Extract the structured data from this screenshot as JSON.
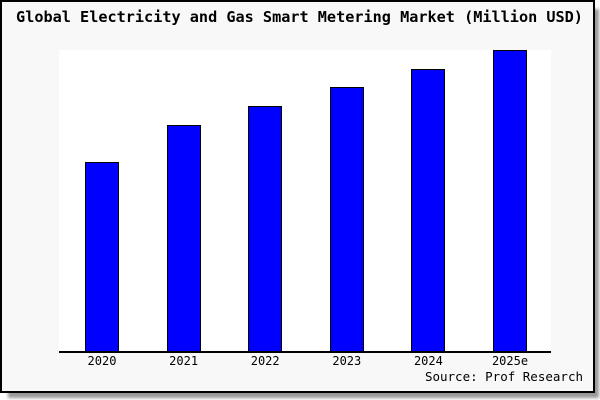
{
  "chart_data": {
    "type": "bar",
    "title": "Global Electricity and Gas Smart Metering Market (Million USD)",
    "categories": [
      "2020",
      "2021",
      "2022",
      "2023",
      "2024",
      "2025e"
    ],
    "values_relative_to_max_pct": [
      62.8,
      75.1,
      81.4,
      87.7,
      93.7,
      100
    ],
    "value_axis_labels_shown": false,
    "ylim_pct": [
      0,
      100
    ],
    "xlabel": "",
    "ylabel": "",
    "grid": false,
    "legend": false
  },
  "source": {
    "text": "Source: Prof Research"
  },
  "colors": {
    "bar_fill": "#0000ff",
    "bar_border": "#000000",
    "plot_bg": "#ffffff",
    "figure_bg": "#f8f8f8",
    "axis_line": "#000000",
    "frame_border": "#000000",
    "shadow": "#999999"
  }
}
